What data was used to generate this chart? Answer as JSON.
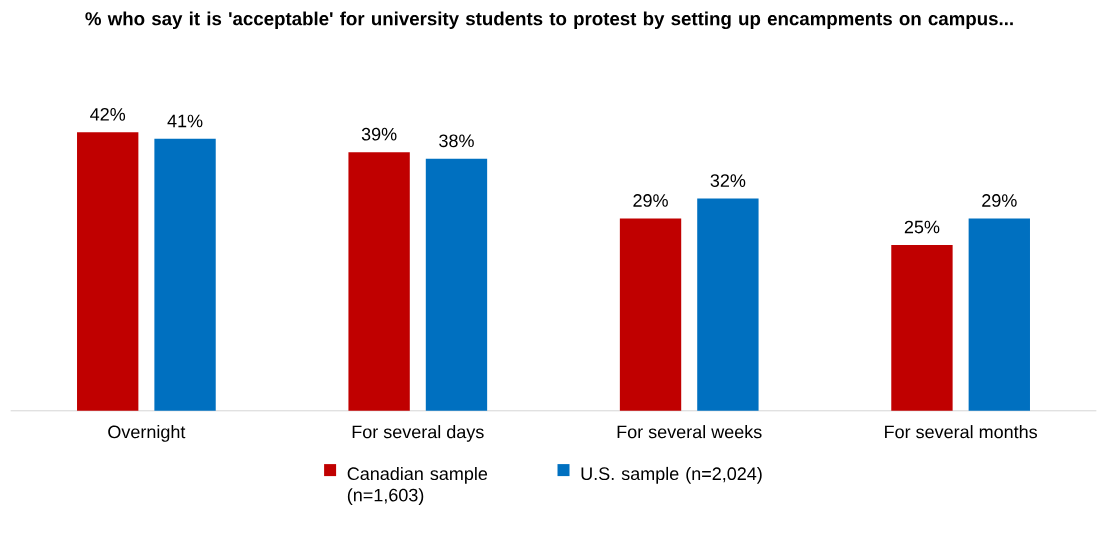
{
  "chart_data": {
    "type": "bar",
    "title": "% who say it is 'acceptable' for university students to protest by setting up encampments on campus...",
    "categories": [
      "Overnight",
      "For several days",
      "For several weeks",
      "For several months"
    ],
    "series": [
      {
        "name": "Canadian sample (n=1,603)",
        "color": "#c00000",
        "values": [
          42,
          39,
          29,
          25
        ],
        "value_labels": [
          "42%",
          "39%",
          "29%",
          "25%"
        ]
      },
      {
        "name": "U.S. sample (n=2,024)",
        "color": "#0070c0",
        "values": [
          41,
          38,
          32,
          29
        ],
        "value_labels": [
          "41%",
          "38%",
          "32%",
          "29%"
        ]
      }
    ],
    "legend": "bottom"
  }
}
